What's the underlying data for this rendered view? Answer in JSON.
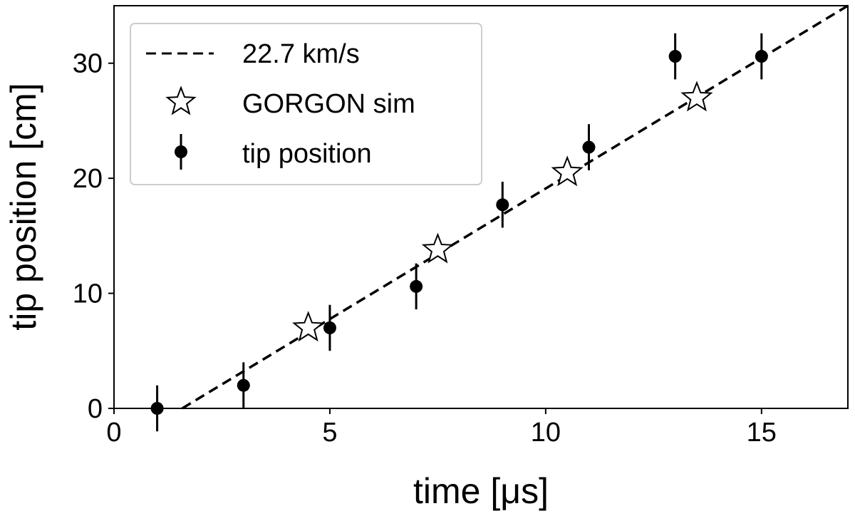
{
  "chart_data": {
    "type": "scatter",
    "xlabel": "time [μs]",
    "ylabel": "tip position [cm]",
    "xlim": [
      0,
      17
    ],
    "ylim": [
      0,
      35
    ],
    "xticks": [
      "0",
      "5",
      "10",
      "15"
    ],
    "yticks": [
      "0",
      "10",
      "20",
      "30"
    ],
    "grid": false,
    "legend_position": "top-left",
    "series": [
      {
        "name": "22.7 km/s",
        "kind": "line",
        "style": "dashed",
        "color": "#000000",
        "x": [
          1.58,
          17.0
        ],
        "y": [
          0.0,
          35.0
        ]
      },
      {
        "name": "GORGON sim",
        "kind": "marker",
        "marker": "star",
        "color": "#ffffff",
        "x": [
          4.5,
          7.5,
          10.5,
          13.5
        ],
        "y": [
          7.0,
          13.8,
          20.5,
          27.0
        ]
      },
      {
        "name": "tip position",
        "kind": "errorbar",
        "marker": "circle",
        "color": "#000000",
        "x": [
          1,
          3,
          5,
          7,
          9,
          11,
          13,
          15
        ],
        "y": [
          0.0,
          2.0,
          7.0,
          10.6,
          17.7,
          22.7,
          30.6,
          30.6
        ],
        "yerr": 2.0
      }
    ]
  }
}
